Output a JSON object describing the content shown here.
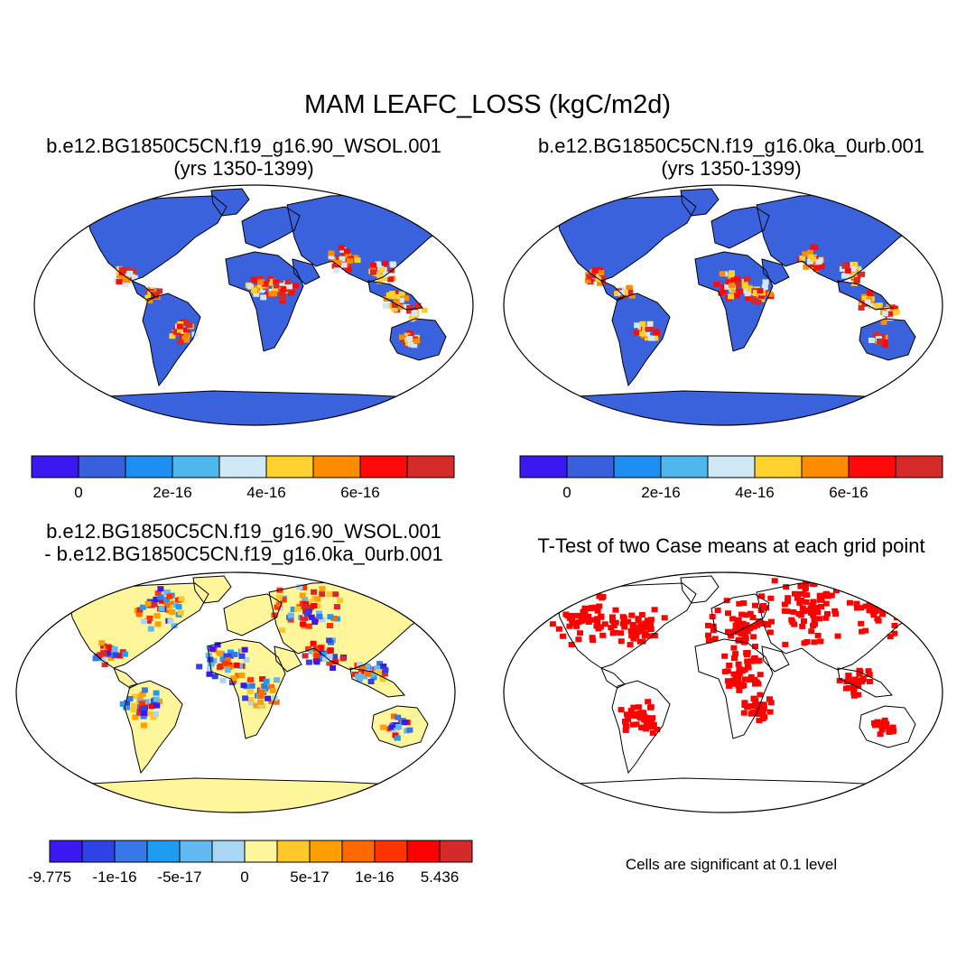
{
  "title": "MAM LEAFC_LOSS (kgC/m2d)",
  "panels": [
    {
      "title_line1": "b.e12.BG1850C5CN.f19_g16.90_WSOL.001",
      "title_line2": "(yrs 1350-1399)",
      "ocean_color": "#ffffff",
      "land_base_color": "#3a62dc",
      "colorbar": {
        "colors": [
          "#3a18f0",
          "#3a5fdc",
          "#1e8ef2",
          "#4fb6ee",
          "#cfe9f6",
          "#ffd12e",
          "#ff8c00",
          "#ff0a0a",
          "#d42a2a"
        ],
        "labels": [
          "0",
          "2e-16",
          "4e-16",
          "6e-16"
        ]
      }
    },
    {
      "title_line1": "b.e12.BG1850C5CN.f19_g16.0ka_0urb.001",
      "title_line2": "(yrs 1350-1399)",
      "ocean_color": "#ffffff",
      "land_base_color": "#3a62dc",
      "colorbar": {
        "colors": [
          "#3a18f0",
          "#3a5fdc",
          "#1e8ef2",
          "#4fb6ee",
          "#cfe9f6",
          "#ffd12e",
          "#ff8c00",
          "#ff0a0a",
          "#d42a2a"
        ],
        "labels": [
          "0",
          "2e-16",
          "4e-16",
          "6e-16"
        ]
      }
    },
    {
      "title_line1": "b.e12.BG1850C5CN.f19_g16.90_WSOL.001",
      "title_line2": "- b.e12.BG1850C5CN.f19_g16.0ka_0urb.001",
      "ocean_color": "#ffffff",
      "land_base_color": "#fff59a",
      "colorbar": {
        "colors": [
          "#3a18f0",
          "#2f42e6",
          "#3778e6",
          "#1e9cf2",
          "#62b8f0",
          "#a9d6f2",
          "#fff59a",
          "#ffc82a",
          "#ff9f00",
          "#ff6a00",
          "#ff3300",
          "#ff0000",
          "#d42a2a"
        ],
        "labels": [
          "-9.775",
          "-1e-16",
          "-5e-17",
          "0",
          "5e-17",
          "1e-16",
          "5.436"
        ]
      }
    },
    {
      "title_line1": "T-Test of two Case means at each grid point",
      "ocean_color": "#ffffff",
      "land_base_color": "#ffffff",
      "significant_color": "#ff0000",
      "note": "Cells are significant at 0.1 level"
    }
  ]
}
